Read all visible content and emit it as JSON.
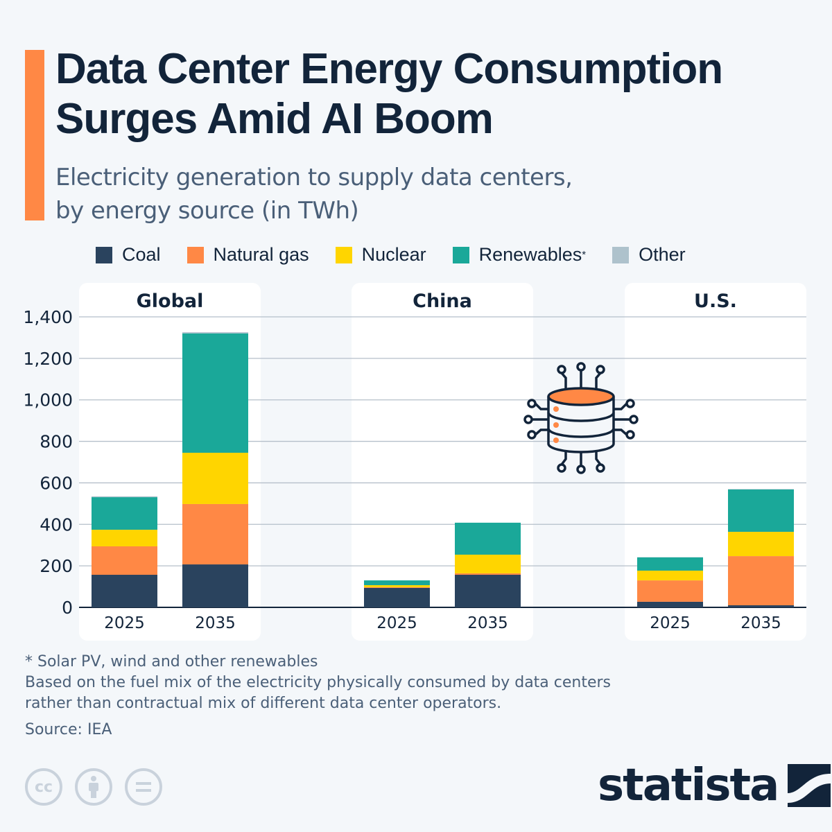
{
  "title": "Data Center Energy Consumption Surges Amid AI Boom",
  "subtitle_line1": "Electricity generation to supply data centers,",
  "subtitle_line2": "by energy source (in TWh)",
  "colors": {
    "accent": "#ff8845",
    "Coal": "#2a435e",
    "Natural gas": "#ff8845",
    "Nuclear": "#ffd500",
    "Renewables": "#1aa899",
    "Other": "#aec2cc"
  },
  "legend": [
    {
      "label": "Coal",
      "sup": ""
    },
    {
      "label": "Natural gas",
      "sup": ""
    },
    {
      "label": "Nuclear",
      "sup": ""
    },
    {
      "label": "Renewables",
      "sup": "*"
    },
    {
      "label": "Other",
      "sup": ""
    }
  ],
  "chart_data": {
    "type": "bar",
    "stacked": true,
    "ylim": [
      0,
      1400
    ],
    "yticks": [
      "0",
      "200",
      "400",
      "600",
      "800",
      "1,000",
      "1,200",
      "1,400"
    ],
    "grid": true,
    "legend_position": "top",
    "panels": [
      {
        "name": "Global",
        "categories": [
          "2025",
          "2035"
        ],
        "series": [
          {
            "name": "Coal",
            "values": [
              157,
              207
            ]
          },
          {
            "name": "Natural gas",
            "values": [
              137,
              291
            ]
          },
          {
            "name": "Nuclear",
            "values": [
              80,
              247
            ]
          },
          {
            "name": "Renewables",
            "values": [
              157,
              575
            ]
          },
          {
            "name": "Other",
            "values": [
              4,
              6
            ]
          }
        ]
      },
      {
        "name": "China",
        "categories": [
          "2025",
          "2035"
        ],
        "series": [
          {
            "name": "Coal",
            "values": [
              94,
              157
            ]
          },
          {
            "name": "Natural gas",
            "values": [
              3,
              7
            ]
          },
          {
            "name": "Nuclear",
            "values": [
              10,
              90
            ]
          },
          {
            "name": "Renewables",
            "values": [
              23,
              154
            ]
          },
          {
            "name": "Other",
            "values": [
              0,
              0
            ]
          }
        ]
      },
      {
        "name": "U.S.",
        "categories": [
          "2025",
          "2035"
        ],
        "series": [
          {
            "name": "Coal",
            "values": [
              27,
              10
            ]
          },
          {
            "name": "Natural gas",
            "values": [
              103,
              237
            ]
          },
          {
            "name": "Nuclear",
            "values": [
              47,
              117
            ]
          },
          {
            "name": "Renewables",
            "values": [
              64,
              204
            ]
          },
          {
            "name": "Other",
            "values": [
              1,
              2
            ]
          }
        ]
      }
    ]
  },
  "notes": {
    "line1": "* Solar PV, wind and other renewables",
    "line2": "Based on the fuel mix of the electricity physically consumed by data centers",
    "line3": "rather than contractual mix of different data center operators."
  },
  "source": "Source: IEA",
  "license_icons": [
    "cc-icon",
    "attribution-icon",
    "no-derivatives-icon"
  ],
  "license_cc": "cc",
  "logo": "statista"
}
